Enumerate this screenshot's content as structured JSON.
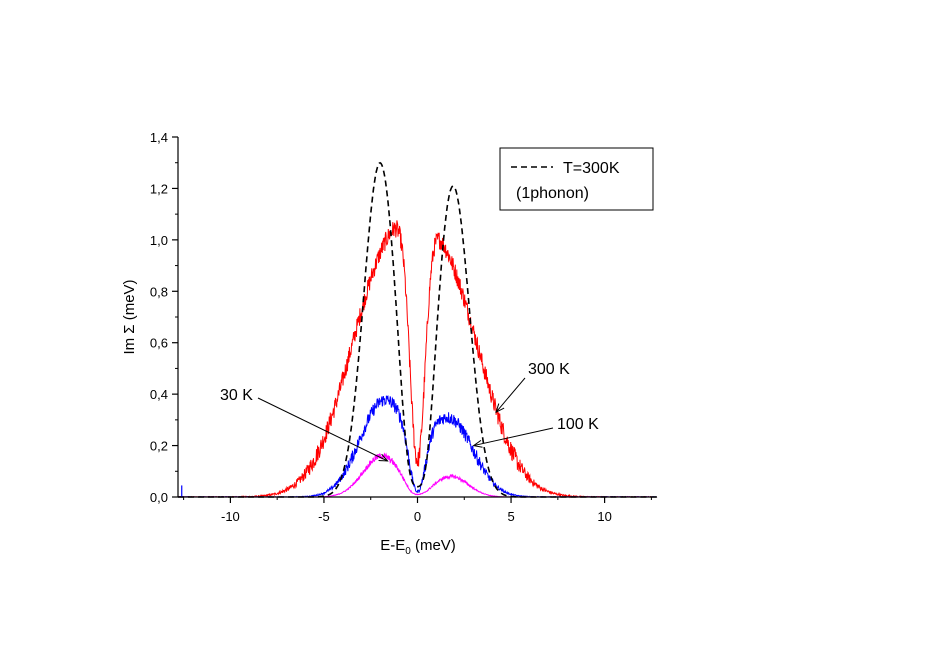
{
  "chart_data": {
    "type": "line",
    "xlabel_main": "E-E",
    "xlabel_sub": "0",
    "xlabel_unit": " (meV)",
    "ylabel": "Im Σ (meV)",
    "xlim": [
      -12.8,
      12.8
    ],
    "ylim": [
      0,
      1.4
    ],
    "x_ticks": [
      -10,
      -5,
      0,
      5,
      10
    ],
    "x_tick_labels": [
      "-10",
      "-5",
      "0",
      "5",
      "10"
    ],
    "y_ticks": [
      0,
      0.2,
      0.4,
      0.6,
      0.8,
      1.0,
      1.2,
      1.4
    ],
    "y_tick_labels": [
      "0,0",
      "0,2",
      "0,4",
      "0,6",
      "0,8",
      "1,0",
      "1,2",
      "1,4"
    ],
    "legend": {
      "line1": "T=300K",
      "line2": "(1phonon)",
      "placement": "top-right"
    },
    "series": [
      {
        "name": "T=300K",
        "color": "#000000",
        "dashed": true,
        "noise": 0,
        "peaks": [
          {
            "x": -2.0,
            "y": 1.3,
            "width": 0.95
          },
          {
            "x": 1.9,
            "y": 1.21,
            "width": 0.95
          }
        ],
        "min_at_zero": 0.04
      },
      {
        "name": "300 K",
        "color": "#ff0000",
        "dashed": false,
        "noise": 0.035,
        "peaks": [
          {
            "x": -1.8,
            "y": 0.8,
            "width": 2.2
          },
          {
            "x": 1.6,
            "y": 0.76,
            "width": 2.2
          }
        ],
        "min_at_zero": 0.14
      },
      {
        "name": "100 K",
        "color": "#0000ff",
        "dashed": false,
        "noise": 0.025,
        "peaks": [
          {
            "x": -1.8,
            "y": 0.37,
            "width": 1.4
          },
          {
            "x": 1.7,
            "y": 0.3,
            "width": 1.4
          }
        ],
        "min_at_zero": 0.02
      },
      {
        "name": "30 K",
        "color": "#ff00ff",
        "dashed": false,
        "noise": 0.012,
        "peaks": [
          {
            "x": -1.9,
            "y": 0.16,
            "width": 1.1
          },
          {
            "x": 1.8,
            "y": 0.08,
            "width": 1.0
          }
        ],
        "min_at_zero": 0.01
      }
    ],
    "annotations": [
      {
        "text": "300 K",
        "arrow_to": {
          "x": 4.2,
          "y": 0.33
        }
      },
      {
        "text": "100 K",
        "arrow_to": {
          "x": 3.0,
          "y": 0.2
        }
      },
      {
        "text": "30 K",
        "arrow_to": {
          "x": -1.6,
          "y": 0.14
        }
      }
    ]
  }
}
